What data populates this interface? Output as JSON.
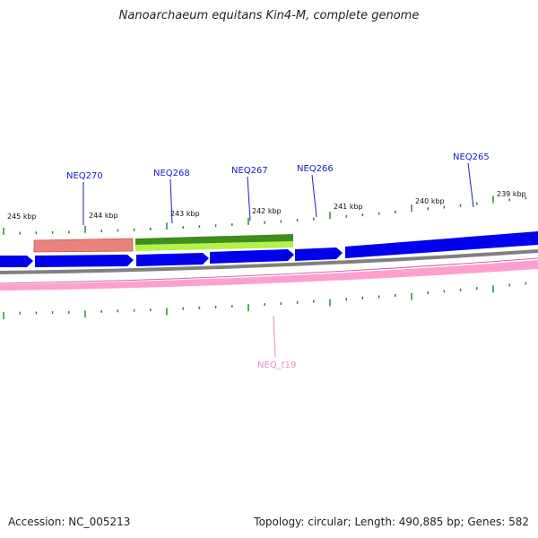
{
  "title": "Nanoarchaeum equitans Kin4-M, complete genome",
  "footer": {
    "accession": "Accession: NC_005213",
    "summary": "Topology: circular; Length: 490,885 bp; Genes: 582"
  },
  "scale_labels": [
    "245 kbp",
    "244 kbp",
    "243 kbp",
    "242 kbp",
    "241 kbp",
    "240 kbp",
    "239 kbp"
  ],
  "gene_labels": [
    "NEQ270",
    "NEQ268",
    "NEQ267",
    "NEQ266",
    "NEQ265"
  ],
  "rna_labels": [
    "NEQ_t19"
  ],
  "colors": {
    "cds": "#0000ee",
    "gene_red": "#e8827a",
    "gene_green": "#3c8f1e",
    "gene_lightgreen": "#b6f04a",
    "backbone": "#808080",
    "trna": "#ff9fd0",
    "ticks": "#2a8a2a",
    "label_blue": "#1a1acd",
    "label_pink": "#e88cc0"
  }
}
